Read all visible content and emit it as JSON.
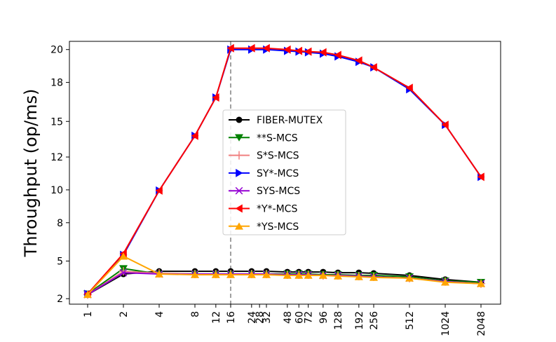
{
  "chart_data": {
    "type": "line",
    "title": "",
    "xlabel": "",
    "ylabel": "Throughput (op/ms)",
    "x_ticks": [
      "1",
      "2",
      "4",
      "8",
      "12",
      "16",
      "24",
      "28",
      "32",
      "48",
      "60",
      "72",
      "96",
      "128",
      "192",
      "256",
      "512",
      "1024",
      "2048"
    ],
    "y_ticks": [
      "2",
      "5",
      "8",
      "10",
      "12",
      "15",
      "18",
      "20"
    ],
    "x_scale": "log2",
    "ylim": [
      1.6,
      20.8
    ],
    "reference_line_x": 16,
    "legend_position": "center",
    "grid": false,
    "series": [
      {
        "name": "FIBER-MUTEX",
        "color": "#000000",
        "marker": "circle",
        "x": [
          1,
          2,
          4,
          8,
          12,
          16,
          24,
          32,
          48,
          60,
          72,
          96,
          128,
          192,
          256,
          512,
          1024,
          2048
        ],
        "y": [
          2.3,
          3.8,
          4.0,
          4.0,
          4.0,
          4.0,
          4.0,
          4.0,
          3.95,
          3.95,
          3.95,
          3.95,
          3.9,
          3.9,
          3.85,
          3.7,
          3.4,
          3.2
        ]
      },
      {
        "name": "**S-MCS",
        "color": "#008000",
        "marker": "triangle-down",
        "x": [
          1,
          2,
          4,
          8,
          12,
          16,
          24,
          32,
          48,
          60,
          72,
          96,
          128,
          192,
          256,
          512,
          1024,
          2048
        ],
        "y": [
          2.35,
          4.2,
          3.8,
          3.8,
          3.8,
          3.8,
          3.8,
          3.8,
          3.8,
          3.8,
          3.8,
          3.75,
          3.75,
          3.7,
          3.7,
          3.6,
          3.3,
          3.2
        ]
      },
      {
        "name": "S*S-MCS",
        "color": "#f08080",
        "marker": "plus",
        "x": [
          1,
          2,
          4,
          8,
          12,
          16,
          24,
          32,
          48,
          60,
          72,
          96,
          128,
          192,
          256,
          512,
          1024,
          2048
        ],
        "y": [
          2.3,
          4.0,
          3.85,
          3.8,
          3.8,
          3.8,
          3.8,
          3.8,
          3.75,
          3.75,
          3.75,
          3.7,
          3.7,
          3.65,
          3.6,
          3.5,
          3.25,
          3.1
        ]
      },
      {
        "name": "SY*-MCS",
        "color": "#0000ff",
        "marker": "triangle-right",
        "x": [
          1,
          2,
          4,
          8,
          12,
          16,
          24,
          32,
          48,
          60,
          72,
          96,
          128,
          192,
          256,
          512,
          1024,
          2048
        ],
        "y": [
          2.35,
          5.2,
          9.9,
          13.9,
          16.7,
          20.2,
          20.2,
          20.2,
          20.1,
          20.05,
          20.0,
          19.9,
          19.7,
          19.3,
          18.9,
          17.3,
          14.7,
          10.9
        ]
      },
      {
        "name": "SYS-MCS",
        "color": "#9400d3",
        "marker": "x",
        "x": [
          1,
          2,
          4,
          8,
          12,
          16,
          24,
          32,
          48,
          60,
          72,
          96,
          128,
          192,
          256,
          512,
          1024,
          2048
        ],
        "y": [
          2.3,
          3.9,
          3.8,
          3.8,
          3.8,
          3.8,
          3.8,
          3.8,
          3.75,
          3.75,
          3.75,
          3.7,
          3.7,
          3.65,
          3.6,
          3.5,
          3.25,
          3.1
        ]
      },
      {
        "name": "*Y*-MCS",
        "color": "#ff0000",
        "marker": "triangle-left",
        "x": [
          1,
          2,
          4,
          8,
          12,
          16,
          24,
          32,
          48,
          60,
          72,
          96,
          128,
          192,
          256,
          512,
          1024,
          2048
        ],
        "y": [
          2.35,
          5.3,
          9.9,
          13.9,
          16.7,
          20.3,
          20.3,
          20.3,
          20.2,
          20.1,
          20.05,
          20.0,
          19.8,
          19.4,
          18.9,
          17.4,
          14.7,
          10.9
        ]
      },
      {
        "name": "*YS-MCS",
        "color": "#ffa500",
        "marker": "triangle-up",
        "x": [
          1,
          2,
          4,
          8,
          12,
          16,
          24,
          32,
          48,
          60,
          72,
          96,
          128,
          192,
          256,
          512,
          1024,
          2048
        ],
        "y": [
          2.3,
          5.1,
          3.8,
          3.75,
          3.75,
          3.75,
          3.75,
          3.75,
          3.7,
          3.7,
          3.7,
          3.7,
          3.65,
          3.6,
          3.55,
          3.5,
          3.2,
          3.1
        ]
      }
    ]
  }
}
